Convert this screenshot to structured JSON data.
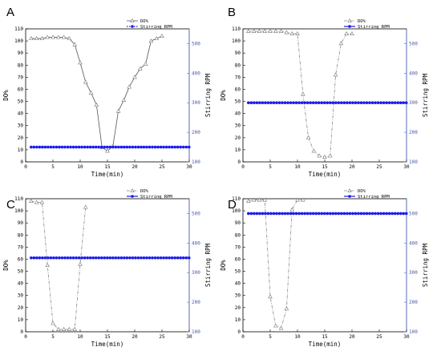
{
  "colors": {
    "do": "#888888",
    "do_line_A": "#555555",
    "rpm": "#1a1aee",
    "right_axis": "#5a6ab8"
  },
  "chart_data": [
    {
      "panel": "A",
      "type": "line",
      "xlabel": "Time(min)",
      "ylabel_left": "DO%",
      "ylabel_right": "Stirring RPM",
      "xlim": [
        0,
        30
      ],
      "ylim_left": [
        0,
        110
      ],
      "ylim_right": [
        100,
        550
      ],
      "x_ticks": [
        0,
        5,
        10,
        15,
        20,
        25,
        30
      ],
      "y_left_ticks": [
        0,
        10,
        20,
        30,
        40,
        50,
        60,
        70,
        80,
        90,
        100,
        110
      ],
      "y_right_ticks": [
        100,
        200,
        300,
        400,
        500
      ],
      "legend_position": "top-right",
      "series": [
        {
          "name": "DO%",
          "axis": "left",
          "marker": "triangle",
          "line": "solid",
          "x": [
            1,
            2,
            3,
            4,
            5,
            6,
            7,
            8,
            9,
            10,
            11,
            12,
            13,
            14,
            15,
            16,
            17,
            18,
            19,
            20,
            21,
            22,
            23,
            24,
            25
          ],
          "y": [
            102,
            102,
            102,
            103,
            103,
            103,
            103,
            102,
            97,
            82,
            66,
            57,
            47,
            12,
            9,
            13,
            42,
            51,
            62,
            70,
            77,
            81,
            100,
            102,
            104
          ]
        },
        {
          "name": "Stirring RPM",
          "axis": "right",
          "marker": "circle",
          "line": "dashed",
          "x": [
            1,
            30
          ],
          "y": [
            150,
            150
          ]
        }
      ]
    },
    {
      "panel": "B",
      "type": "line",
      "xlabel": "Time(min)",
      "ylabel_left": "DO%",
      "ylabel_right": "Stirring RPM",
      "xlim": [
        0,
        30
      ],
      "ylim_left": [
        0,
        110
      ],
      "ylim_right": [
        100,
        550
      ],
      "x_ticks": [
        0,
        5,
        10,
        15,
        20,
        25,
        30
      ],
      "y_left_ticks": [
        0,
        10,
        20,
        30,
        40,
        50,
        60,
        70,
        80,
        90,
        100,
        110
      ],
      "y_right_ticks": [
        100,
        200,
        300,
        400,
        500
      ],
      "legend_position": "top-right",
      "series": [
        {
          "name": "DO%",
          "axis": "left",
          "marker": "triangle",
          "line": "dashdot",
          "x": [
            1,
            2,
            3,
            4,
            5,
            6,
            7,
            8,
            9,
            10,
            11,
            12,
            13,
            14,
            15,
            16,
            17,
            18,
            19,
            20
          ],
          "y": [
            108,
            108,
            108,
            108,
            108,
            108,
            108,
            107,
            106,
            106,
            56,
            20,
            9,
            5,
            4,
            5,
            72,
            98,
            106,
            106
          ]
        },
        {
          "name": "Stirring RPM",
          "axis": "right",
          "marker": "circle",
          "line": "solid",
          "x": [
            1,
            30
          ],
          "y": [
            300,
            300
          ]
        }
      ]
    },
    {
      "panel": "C",
      "type": "line",
      "xlabel": "Time(min)",
      "ylabel_left": "DO%",
      "ylabel_right": "Stirring RPM",
      "xlim": [
        0,
        30
      ],
      "ylim_left": [
        0,
        110
      ],
      "ylim_right": [
        100,
        550
      ],
      "x_ticks": [
        0,
        5,
        10,
        15,
        20,
        25,
        30
      ],
      "y_left_ticks": [
        0,
        10,
        20,
        30,
        40,
        50,
        60,
        70,
        80,
        90,
        100,
        110
      ],
      "y_right_ticks": [
        100,
        200,
        300,
        400,
        500
      ],
      "legend_position": "top-right",
      "series": [
        {
          "name": "DO%",
          "axis": "left",
          "marker": "triangle",
          "line": "dashdot",
          "x": [
            1,
            2,
            3,
            4,
            5,
            6,
            7,
            8,
            9,
            10,
            11
          ],
          "y": [
            108,
            107,
            107,
            55,
            7,
            2,
            2,
            2,
            2,
            56,
            103
          ]
        },
        {
          "name": "Stirring RPM",
          "axis": "right",
          "marker": "circle",
          "line": "solid",
          "x": [
            1,
            30
          ],
          "y": [
            350,
            350
          ]
        }
      ]
    },
    {
      "panel": "D",
      "type": "line",
      "xlabel": "Time(min)",
      "ylabel_left": "DO%",
      "ylabel_right": "Stirring RPM",
      "xlim": [
        0,
        30
      ],
      "ylim_left": [
        0,
        110
      ],
      "ylim_right": [
        100,
        550
      ],
      "x_ticks": [
        0,
        5,
        10,
        15,
        20,
        25,
        30
      ],
      "y_left_ticks": [
        0,
        10,
        20,
        30,
        40,
        50,
        60,
        70,
        80,
        90,
        100,
        110
      ],
      "y_right_ticks": [
        100,
        200,
        300,
        400,
        500
      ],
      "legend_position": "top-right",
      "series": [
        {
          "name": "DO%",
          "axis": "left",
          "marker": "triangle",
          "line": "dashdot",
          "x": [
            1,
            2,
            3,
            4,
            5,
            6,
            7,
            8,
            9,
            10,
            11
          ],
          "y": [
            108,
            109,
            109,
            109,
            29,
            5,
            3,
            19,
            101,
            109,
            109
          ]
        },
        {
          "name": "Stirring RPM",
          "axis": "right",
          "marker": "circle",
          "line": "solid",
          "x": [
            1,
            30
          ],
          "y": [
            500,
            500
          ]
        }
      ]
    }
  ]
}
